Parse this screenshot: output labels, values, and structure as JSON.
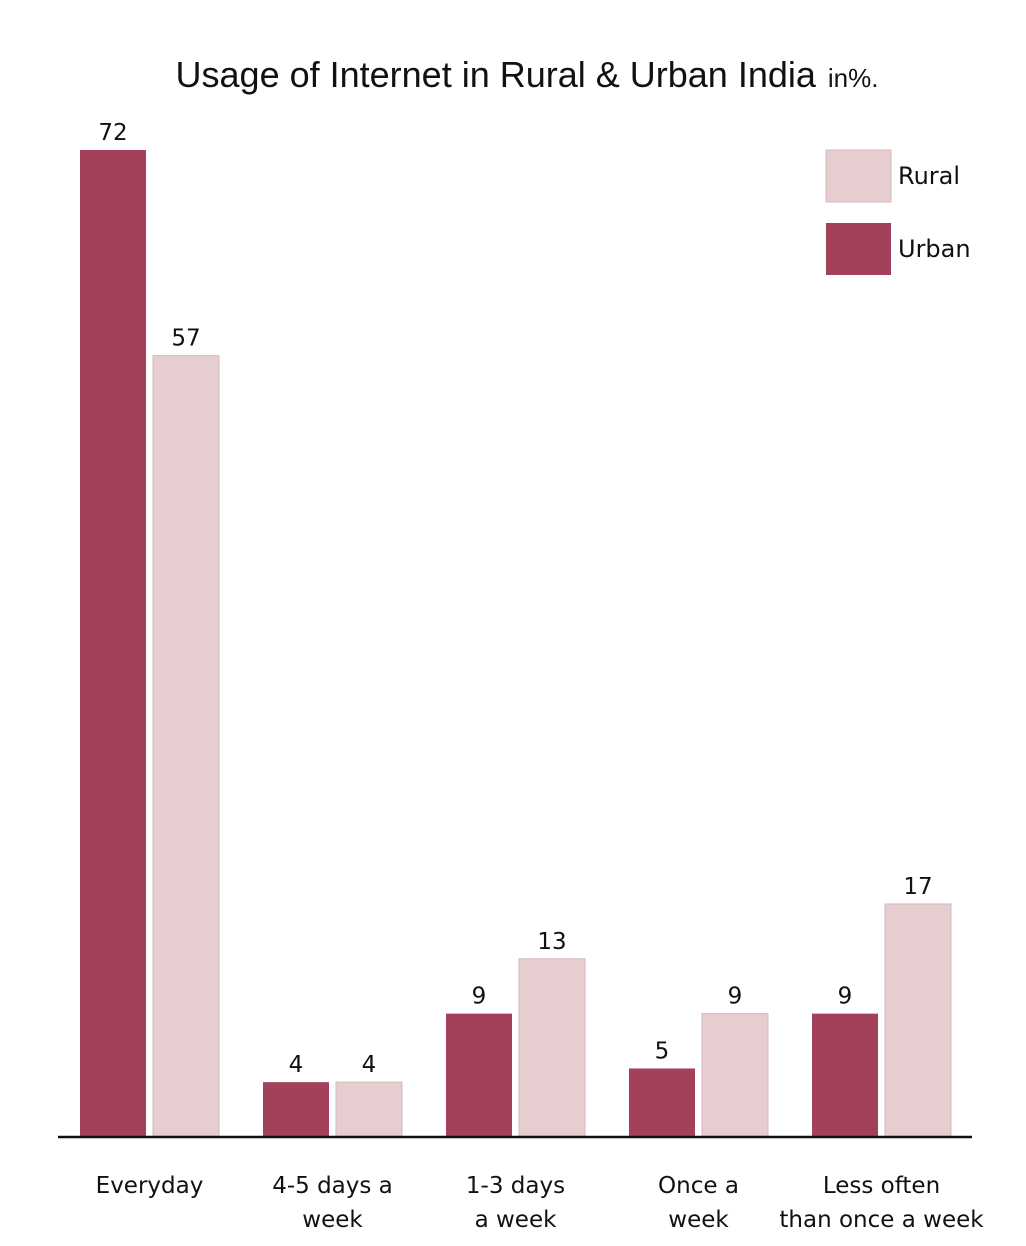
{
  "chart_data": {
    "type": "bar",
    "title": "Usage of Internet in Rural & Urban India",
    "title_unit": "in%.",
    "categories": [
      [
        "Everyday"
      ],
      [
        "4-5 days a",
        "week"
      ],
      [
        "1-3 days",
        "a week"
      ],
      [
        "Once a",
        "week"
      ],
      [
        "Less often",
        "than once a week"
      ]
    ],
    "series": [
      {
        "name": "Urban",
        "values": [
          72,
          4,
          9,
          5,
          9
        ],
        "color": "#a2425a"
      },
      {
        "name": "Rural",
        "values": [
          57,
          4,
          13,
          9,
          17
        ],
        "color": "#e6cdd0"
      }
    ],
    "ylim": [
      0,
      72
    ],
    "grid": false,
    "legend_position": "top-right",
    "legend_order": [
      "Rural",
      "Urban"
    ],
    "data_labels": true
  }
}
